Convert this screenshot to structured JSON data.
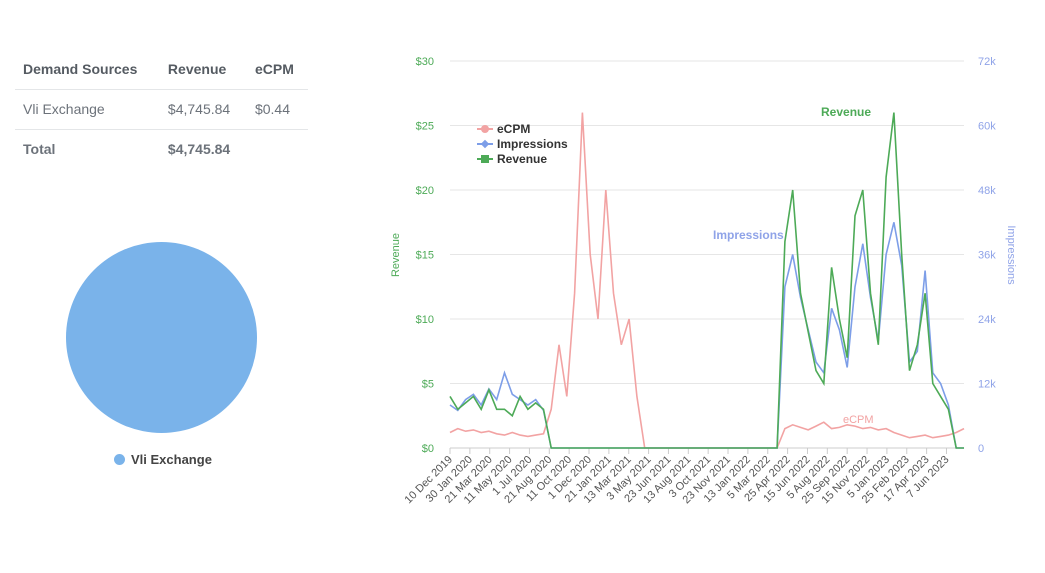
{
  "table": {
    "headers": [
      "Demand Sources",
      "Revenue",
      "eCPM"
    ],
    "rows": [
      [
        "Vli Exchange",
        "$4,745.84",
        "$0.44"
      ]
    ],
    "total": {
      "label": "Total",
      "revenue": "$4,745.84"
    }
  },
  "pie": {
    "slices": [
      {
        "name": "Vli Exchange",
        "value": 4745.84,
        "color": "#7ab3ea"
      }
    ]
  },
  "chart_data": {
    "type": "line",
    "x_ticks": [
      "10 Dec 2019",
      "30 Jan 2020",
      "21 Mar 2020",
      "11 May 2020",
      "1 Jul 2020",
      "21 Aug 2020",
      "11 Oct 2020",
      "1 Dec 2020",
      "21 Jan 2021",
      "13 Mar 2021",
      "3 May 2021",
      "23 Jun 2021",
      "13 Aug 2021",
      "3 Oct 2021",
      "23 Nov 2021",
      "13 Jan 2022",
      "5 Mar 2022",
      "25 Apr 2022",
      "15 Jun 2022",
      "5 Aug 2022",
      "25 Sep 2022",
      "15 Nov 2022",
      "5 Jan 2023",
      "25 Feb 2023",
      "17 Apr 2023",
      "7 Jun 2023"
    ],
    "x_step_days": 20,
    "ylabel_left": "Revenue",
    "ylabel_right": "Impressions",
    "y_left_ticks": [
      "$0",
      "$5",
      "$10",
      "$15",
      "$20",
      "$25",
      "$30"
    ],
    "ylim_left": [
      0,
      30
    ],
    "y_right_ticks": [
      "0",
      "12k",
      "24k",
      "36k",
      "48k",
      "60k",
      "72k"
    ],
    "ylim_right": [
      0,
      72000
    ],
    "legend": {
      "position": "top-left",
      "entries": [
        "eCPM",
        "Impressions",
        "Revenue"
      ]
    },
    "annotations": {
      "revenue": "Revenue",
      "impressions": "Impressions",
      "ecpm": "eCPM"
    },
    "series": [
      {
        "name": "eCPM",
        "axis": "left",
        "color": "#f2a3a3",
        "values": [
          1.2,
          1.5,
          1.3,
          1.4,
          1.2,
          1.3,
          1.1,
          1.0,
          1.2,
          1.0,
          0.9,
          1.0,
          1.1,
          3,
          8,
          4,
          12,
          26,
          15,
          10,
          20,
          12,
          8,
          10,
          4,
          0,
          0,
          0,
          0,
          0,
          0,
          0,
          0,
          0,
          0,
          0,
          0,
          0,
          0,
          0,
          0,
          0,
          0,
          1.5,
          1.8,
          1.6,
          1.4,
          1.7,
          2.0,
          1.5,
          1.6,
          1.8,
          1.7,
          1.5,
          1.6,
          1.4,
          1.5,
          1.2,
          1.0,
          0.8,
          0.9,
          1.0,
          0.8,
          0.9,
          1.0,
          1.2,
          1.5
        ]
      },
      {
        "name": "Impressions",
        "axis": "right",
        "color": "#7d9ee8",
        "values": [
          8000,
          7000,
          9000,
          10000,
          8000,
          11000,
          9000,
          14000,
          10000,
          9000,
          8000,
          9000,
          7000,
          0,
          0,
          0,
          0,
          0,
          0,
          0,
          0,
          0,
          0,
          0,
          0,
          0,
          0,
          0,
          0,
          0,
          0,
          0,
          0,
          0,
          0,
          0,
          0,
          0,
          0,
          0,
          0,
          0,
          0,
          30000,
          36000,
          28000,
          22000,
          16000,
          14000,
          26000,
          22000,
          15000,
          30000,
          38000,
          28000,
          20000,
          36000,
          42000,
          34000,
          16000,
          18000,
          33000,
          14000,
          12000,
          8000,
          0,
          0
        ]
      },
      {
        "name": "Revenue",
        "axis": "left",
        "color": "#4daa57",
        "values": [
          4,
          3,
          3.5,
          4,
          3,
          4.5,
          3,
          3,
          2.5,
          4,
          3,
          3.5,
          3,
          0,
          0,
          0,
          0,
          0,
          0,
          0,
          0,
          0,
          0,
          0,
          0,
          0,
          0,
          0,
          0,
          0,
          0,
          0,
          0,
          0,
          0,
          0,
          0,
          0,
          0,
          0,
          0,
          0,
          0,
          16,
          20,
          12,
          9,
          6,
          5,
          14,
          10,
          7,
          18,
          20,
          12,
          8,
          21,
          26,
          15,
          6,
          8,
          12,
          5,
          4,
          3,
          0,
          0
        ]
      }
    ]
  }
}
